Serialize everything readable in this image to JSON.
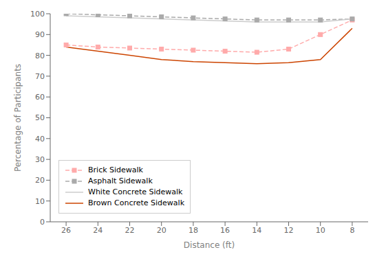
{
  "chart_data": {
    "type": "line",
    "xlabel": "Distance (ft)",
    "ylabel": "Percentage of Participants",
    "x": [
      26,
      24,
      22,
      20,
      18,
      16,
      14,
      12,
      10,
      8
    ],
    "series": [
      {
        "name": "Brick Sidewalk",
        "color": "#ffaaaa",
        "line_style": "dashed",
        "marker": "square",
        "values": [
          85.0,
          84.0,
          83.5,
          83.0,
          82.5,
          82.0,
          81.5,
          83.0,
          90.0,
          97.0
        ]
      },
      {
        "name": "Asphalt Sidewalk",
        "color": "#aaaaaa",
        "line_style": "dashed",
        "marker": "square",
        "values": [
          100.0,
          99.5,
          99.0,
          98.5,
          98.0,
          97.5,
          97.0,
          97.0,
          97.0,
          97.5
        ]
      },
      {
        "name": "White Concrete Sidewalk",
        "color": "#cccccc",
        "line_style": "solid",
        "marker": "none",
        "values": [
          99.0,
          98.5,
          98.0,
          97.5,
          97.0,
          96.5,
          96.0,
          96.0,
          96.0,
          97.5
        ]
      },
      {
        "name": "Brown Concrete Sidewalk",
        "color": "#cc4400",
        "line_style": "solid",
        "marker": "none",
        "values": [
          84.0,
          82.0,
          80.0,
          78.0,
          77.0,
          76.5,
          76.0,
          76.5,
          78.0,
          93.0
        ]
      }
    ],
    "xlim": [
      27,
      7
    ],
    "ylim": [
      0,
      100
    ],
    "xticks": [
      26,
      24,
      22,
      20,
      18,
      16,
      14,
      12,
      10,
      8
    ],
    "yticks": [
      0,
      10,
      20,
      30,
      40,
      50,
      60,
      70,
      80,
      90,
      100
    ],
    "grid": false,
    "legend": "lower left"
  }
}
